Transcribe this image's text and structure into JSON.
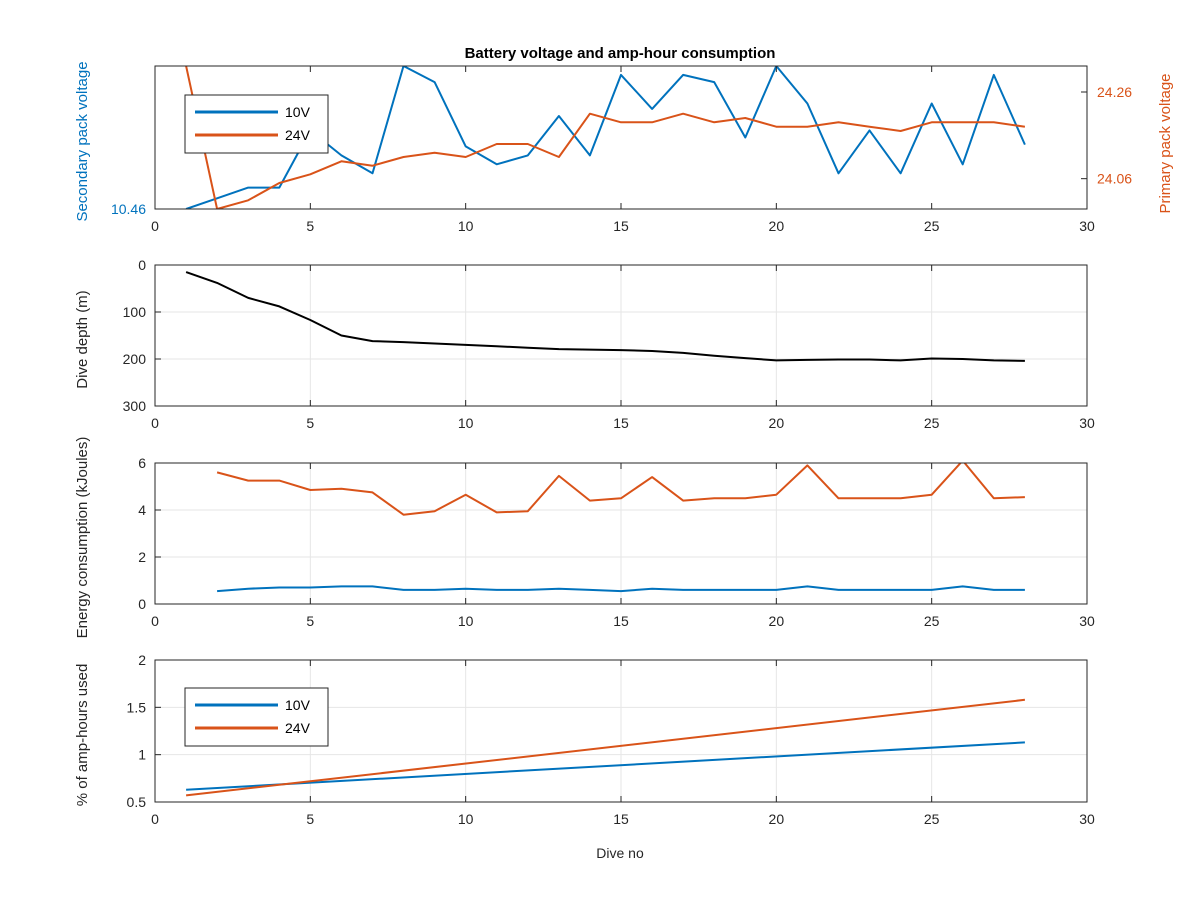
{
  "figure": {
    "title": "Battery voltage and amp-hour consumption",
    "xlabel": "Dive no",
    "colors": {
      "series_10v": "#0072BD",
      "series_24v": "#D95319",
      "depth": "#000000",
      "grid": "#e6e6e6",
      "axis": "#262626"
    }
  },
  "chart_data": [
    {
      "type": "line",
      "id": "voltage",
      "title": "Battery voltage and amp-hour consumption",
      "xlabel": "",
      "ylabel": "Secondary pack voltage",
      "ylabel_right": "Primary pack voltage",
      "xlim": [
        0,
        30
      ],
      "xticks": [
        0,
        5,
        10,
        15,
        20,
        25,
        30
      ],
      "ylim": [
        10.46,
        10.54
      ],
      "yticks": [
        10.46
      ],
      "ytick_labels": [
        "10.46"
      ],
      "ylim_right": [
        23.99,
        24.32
      ],
      "yticks_right": [
        24.06,
        24.26
      ],
      "ytick_labels_right": [
        "24.06",
        "24.26"
      ],
      "grid": false,
      "legend": [
        "10V",
        "24V"
      ],
      "legend_position": "top-left",
      "series": [
        {
          "name": "10V",
          "axis": "left",
          "x": [
            1,
            2,
            3,
            4,
            5,
            6,
            7,
            8,
            9,
            10,
            11,
            12,
            13,
            14,
            15,
            16,
            17,
            18,
            19,
            20,
            21,
            22,
            23,
            24,
            25,
            26,
            27,
            28
          ],
          "y": [
            10.46,
            10.466,
            10.472,
            10.472,
            10.504,
            10.49,
            10.48,
            10.54,
            10.531,
            10.495,
            10.485,
            10.49,
            10.512,
            10.49,
            10.535,
            10.516,
            10.535,
            10.531,
            10.5,
            10.54,
            10.519,
            10.48,
            10.504,
            10.48,
            10.519,
            10.485,
            10.535,
            10.496
          ]
        },
        {
          "name": "24V",
          "axis": "right",
          "x": [
            1,
            2,
            3,
            4,
            5,
            6,
            7,
            8,
            9,
            10,
            11,
            12,
            13,
            14,
            15,
            16,
            17,
            18,
            19,
            20,
            21,
            22,
            23,
            24,
            25,
            26,
            27,
            28
          ],
          "y": [
            24.32,
            23.99,
            24.01,
            24.05,
            24.07,
            24.1,
            24.09,
            24.11,
            24.12,
            24.11,
            24.14,
            24.14,
            24.11,
            24.21,
            24.19,
            24.19,
            24.21,
            24.19,
            24.2,
            24.18,
            24.18,
            24.19,
            24.18,
            24.17,
            24.19,
            24.19,
            24.19,
            24.18
          ]
        }
      ]
    },
    {
      "type": "line",
      "id": "depth",
      "xlabel": "",
      "ylabel": "Dive depth (m)",
      "xlim": [
        0,
        30
      ],
      "xticks": [
        0,
        5,
        10,
        15,
        20,
        25,
        30
      ],
      "ylim": [
        0,
        300
      ],
      "ydir": "reverse",
      "yticks": [
        0,
        100,
        200,
        300
      ],
      "grid": true,
      "series": [
        {
          "x": [
            1,
            2,
            3,
            4,
            5,
            6,
            7,
            8,
            9,
            10,
            11,
            12,
            13,
            14,
            15,
            16,
            17,
            18,
            19,
            20,
            21,
            22,
            23,
            24,
            25,
            26,
            27,
            28
          ],
          "y": [
            15,
            38,
            70,
            88,
            117,
            150,
            162,
            164,
            167,
            170,
            173,
            176,
            179,
            180,
            181,
            183,
            187,
            193,
            198,
            203,
            202,
            201,
            201,
            203,
            199,
            200,
            203,
            204
          ]
        }
      ]
    },
    {
      "type": "line",
      "id": "energy",
      "xlabel": "",
      "ylabel": "Energy consumption (kJoules)",
      "xlim": [
        0,
        30
      ],
      "xticks": [
        0,
        5,
        10,
        15,
        20,
        25,
        30
      ],
      "ylim": [
        0,
        6
      ],
      "yticks": [
        0,
        2,
        4,
        6
      ],
      "grid": true,
      "series": [
        {
          "name": "10V",
          "x": [
            2,
            3,
            4,
            5,
            6,
            7,
            8,
            9,
            10,
            11,
            12,
            13,
            14,
            15,
            16,
            17,
            18,
            19,
            20,
            21,
            22,
            23,
            24,
            25,
            26,
            27,
            28
          ],
          "y": [
            0.55,
            0.65,
            0.7,
            0.7,
            0.75,
            0.75,
            0.6,
            0.6,
            0.65,
            0.6,
            0.6,
            0.65,
            0.6,
            0.55,
            0.65,
            0.6,
            0.6,
            0.6,
            0.6,
            0.75,
            0.6,
            0.6,
            0.6,
            0.6,
            0.75,
            0.6,
            0.6
          ]
        },
        {
          "name": "24V",
          "x": [
            2,
            3,
            4,
            5,
            6,
            7,
            8,
            9,
            10,
            11,
            12,
            13,
            14,
            15,
            16,
            17,
            18,
            19,
            20,
            21,
            22,
            23,
            24,
            25,
            26,
            27,
            28
          ],
          "y": [
            5.6,
            5.25,
            5.25,
            4.85,
            4.9,
            4.75,
            3.8,
            3.95,
            4.65,
            3.9,
            3.95,
            5.45,
            4.4,
            4.5,
            5.4,
            4.4,
            4.5,
            4.5,
            4.65,
            5.9,
            4.5,
            4.5,
            4.5,
            4.65,
            6.1,
            4.5,
            4.55
          ]
        }
      ]
    },
    {
      "type": "line",
      "id": "amphours",
      "xlabel": "Dive no",
      "ylabel": "% of amp-hours used",
      "xlim": [
        0,
        30
      ],
      "xticks": [
        0,
        5,
        10,
        15,
        20,
        25,
        30
      ],
      "ylim": [
        0.5,
        2
      ],
      "yticks": [
        0.5,
        1,
        1.5,
        2
      ],
      "grid": true,
      "legend": [
        "10V",
        "24V"
      ],
      "legend_position": "top-left",
      "series": [
        {
          "name": "10V",
          "x": [
            1,
            28
          ],
          "y": [
            0.63,
            1.13
          ]
        },
        {
          "name": "24V",
          "x": [
            1,
            28
          ],
          "y": [
            0.57,
            1.58
          ]
        }
      ]
    }
  ]
}
